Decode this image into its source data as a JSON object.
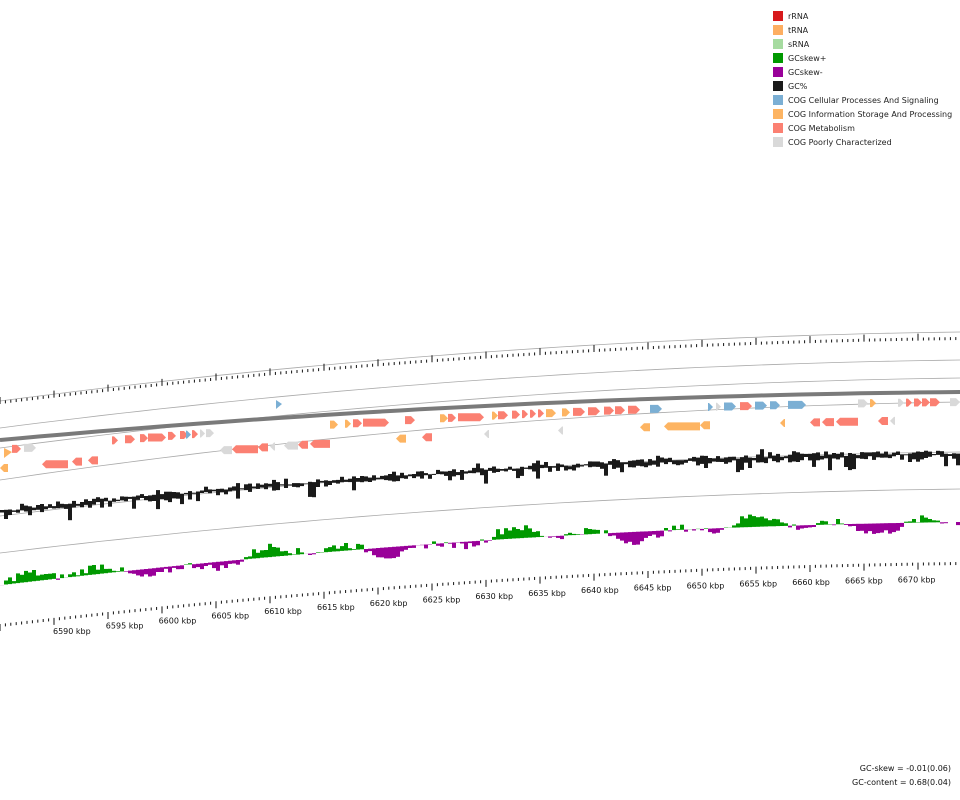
{
  "legend": [
    {
      "label": "rRNA",
      "color": "#d7191c"
    },
    {
      "label": "tRNA",
      "color": "#fdae61"
    },
    {
      "label": "sRNA",
      "color": "#a6dba0"
    },
    {
      "label": "GCskew+",
      "color": "#009900"
    },
    {
      "label": "GCskew-",
      "color": "#990099"
    },
    {
      "label": "GC%",
      "color": "#1a1a1a"
    },
    {
      "label": "COG Cellular Processes And Signaling",
      "color": "#7bafd4"
    },
    {
      "label": "COG Information Storage And Processing",
      "color": "#fdb462"
    },
    {
      "label": "COG Metabolism",
      "color": "#fb8072"
    },
    {
      "label": "COG Poorly Characterized",
      "color": "#d9d9d9"
    }
  ],
  "scale": {
    "labels": [
      "6590 kbp",
      "6595 kbp",
      "6600 kbp",
      "6605 kbp",
      "6610 kbp",
      "6615 kbp",
      "6620 kbp",
      "6625 kbp",
      "6630 kbp",
      "6635 kbp",
      "6640 kbp",
      "6645 kbp",
      "6650 kbp",
      "6655 kbp",
      "6660 kbp",
      "6665 kbp",
      "6670 kbp"
    ]
  },
  "stats": {
    "gc_skew": "GC-skew = -0.01(0.06)",
    "gc_content": "GC-content = 0.68(0.04)"
  }
}
